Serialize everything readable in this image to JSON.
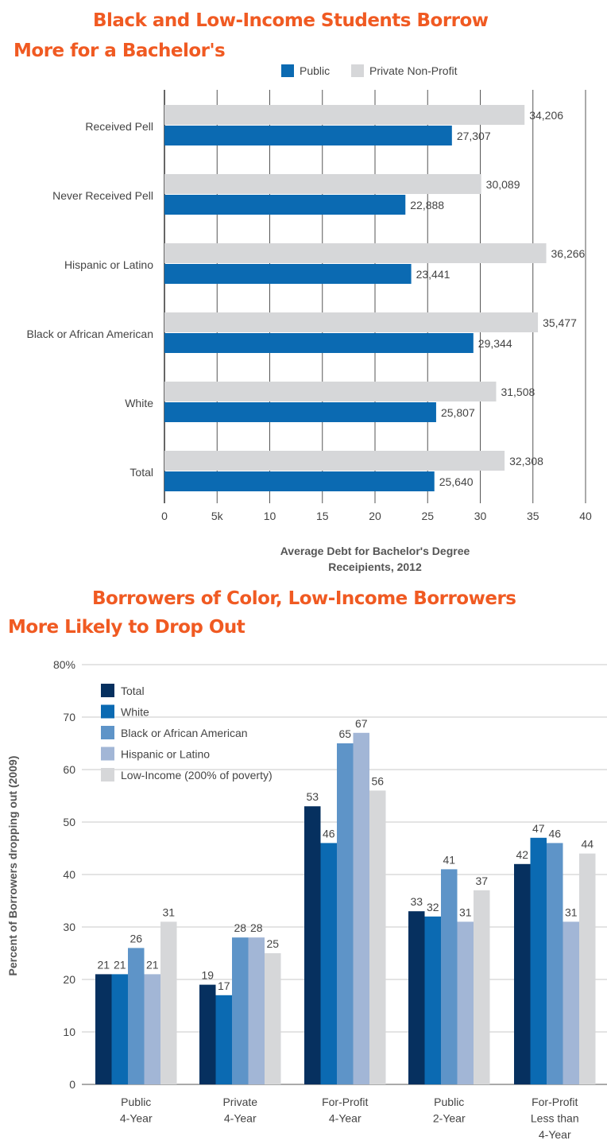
{
  "chart_data": [
    {
      "type": "bar",
      "orientation": "horizontal",
      "title_line1": "Black and Low-Income Students Borrow",
      "title_line2": "More for a Bachelor's",
      "xlabel_line1": "Average Debt for Bachelor's Degree",
      "xlabel_line2": "Receipients, 2012",
      "categories": [
        "Received Pell",
        "Never Received Pell",
        "Hispanic or Latino",
        "Black or African American",
        "White",
        "Total"
      ],
      "series": [
        {
          "name": "Public",
          "color": "#0b6ab2",
          "values": [
            27307,
            22888,
            23441,
            29344,
            25807,
            25640
          ],
          "labels": [
            "27,307",
            "22,888",
            "23,441",
            "29,344",
            "25,807",
            "25,640"
          ]
        },
        {
          "name": "Private Non-Profit",
          "color": "#d6d7d9",
          "values": [
            34206,
            30089,
            36266,
            35477,
            31508,
            32308
          ],
          "labels": [
            "34,206",
            "30,089",
            "36,266",
            "35,477",
            "31,508",
            "32,308"
          ]
        }
      ],
      "xlim": [
        0,
        40000
      ],
      "tick_labels": [
        "0",
        "5k",
        "10",
        "15",
        "20",
        "25",
        "30",
        "35",
        "40"
      ],
      "grid": "vertical",
      "legend_position": "top"
    },
    {
      "type": "bar",
      "orientation": "vertical",
      "title_line1": "Borrowers of Color, Low-Income Borrowers",
      "title_line2": "More Likely to Drop Out",
      "ylabel": "Percent of Borrowers dropping out (2009)",
      "categories": [
        [
          "Public",
          "4-Year"
        ],
        [
          "Private",
          "4-Year"
        ],
        [
          "For-Profit",
          "4-Year"
        ],
        [
          "Public",
          "2-Year"
        ],
        [
          "For-Profit",
          "Less than",
          "4-Year"
        ]
      ],
      "series": [
        {
          "name": "Total",
          "color": "#06305f",
          "values": [
            21,
            19,
            53,
            33,
            42
          ]
        },
        {
          "name": "White",
          "color": "#0b6ab2",
          "values": [
            21,
            17,
            46,
            32,
            47
          ]
        },
        {
          "name": "Black or African American",
          "color": "#5e94c8",
          "values": [
            26,
            28,
            65,
            41,
            46
          ]
        },
        {
          "name": "Hispanic or Latino",
          "color": "#a2b6d6",
          "values": [
            21,
            28,
            67,
            31,
            31
          ]
        },
        {
          "name": "Low-Income (200% of poverty)",
          "color": "#d6d7d9",
          "values": [
            31,
            25,
            56,
            37,
            44
          ]
        }
      ],
      "ylim": [
        0,
        80
      ],
      "tick_labels": [
        "0",
        "10",
        "20",
        "30",
        "40",
        "50",
        "60",
        "70",
        "80%"
      ],
      "grid": "horizontal",
      "legend_position": "top-left"
    }
  ]
}
